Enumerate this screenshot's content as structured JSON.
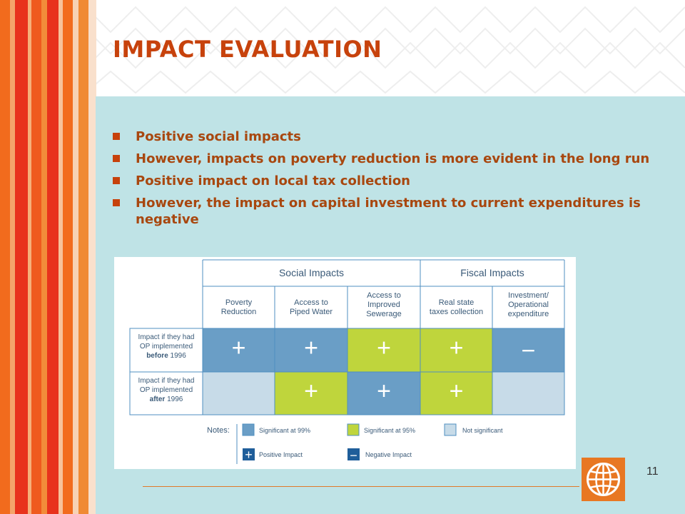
{
  "slide": {
    "title": "IMPACT EVALUATION",
    "page_number": "11"
  },
  "bullets": [
    "Positive social impacts",
    "However, impacts on poverty reduction is more evident in the long run",
    "Positive impact on local tax collection",
    "However, the impact on capital investment to current expenditures is negative"
  ],
  "table": {
    "group_headers": [
      "Social   Impacts",
      "Fiscal Impacts"
    ],
    "columns": [
      [
        "Poverty",
        "Reduction"
      ],
      [
        "Access to",
        "Piped Water"
      ],
      [
        "Access to",
        "Improved",
        "Sewerage"
      ],
      [
        "Real state",
        "taxes collection"
      ],
      [
        "Investment/",
        "Operational",
        "expenditure"
      ]
    ],
    "rows": [
      {
        "label_lines": [
          "Impact if they had",
          "OP implemented"
        ],
        "label_bold": "before",
        "label_year": " 1996",
        "cells": [
          {
            "sign": "+",
            "status": "sig99"
          },
          {
            "sign": "+",
            "status": "sig99"
          },
          {
            "sign": "+",
            "status": "sig95"
          },
          {
            "sign": "+",
            "status": "sig95"
          },
          {
            "sign": "−",
            "status": "sig99"
          }
        ]
      },
      {
        "label_lines": [
          "Impact if they had",
          "OP implemented"
        ],
        "label_bold": "after",
        "label_year": " 1996",
        "cells": [
          {
            "sign": "",
            "status": "notsig"
          },
          {
            "sign": "+",
            "status": "sig95"
          },
          {
            "sign": "+",
            "status": "sig99"
          },
          {
            "sign": "+",
            "status": "sig95"
          },
          {
            "sign": "",
            "status": "notsig"
          }
        ]
      }
    ],
    "notes": {
      "label": "Notes:",
      "sig99": "Significant at 99%",
      "sig95": "Significant at 95%",
      "notsig": "Not significant",
      "positive": "Positive Impact",
      "negative": "Negative Impact"
    },
    "colors": {
      "sig99": "#6a9ec6",
      "sig95": "#bfd53c",
      "notsig": "#c7dbe8",
      "border": "#4f8fc0",
      "text": "#3a5a78"
    }
  },
  "colors": {
    "title": "#c7420c",
    "bullet_text": "#a8470f",
    "content_bg": "#bfe3e6",
    "logo_bg": "#e87722"
  }
}
